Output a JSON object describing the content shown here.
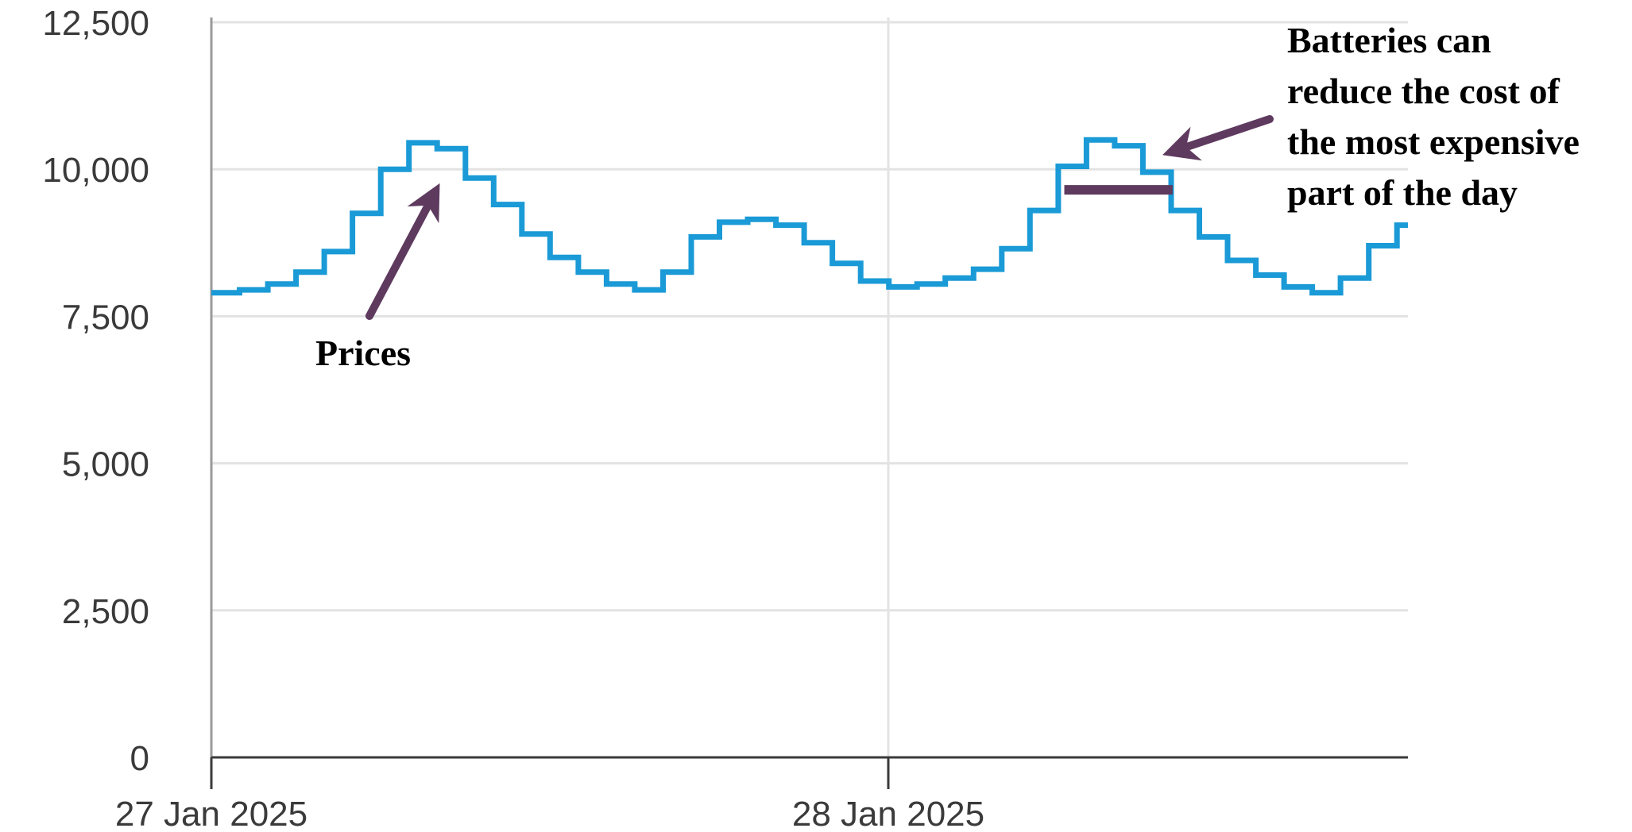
{
  "chart_data": {
    "type": "line",
    "step": true,
    "title": "",
    "xlabel": "",
    "ylabel": "",
    "ylim": [
      0,
      12500
    ],
    "y_ticks": [
      {
        "value": 0,
        "label": "0"
      },
      {
        "value": 2500,
        "label": "2,500"
      },
      {
        "value": 5000,
        "label": "5,000"
      },
      {
        "value": 7500,
        "label": "7,500"
      },
      {
        "value": 10000,
        "label": "10,000"
      },
      {
        "value": 12500,
        "label": "12,500"
      }
    ],
    "x_range_days": [
      0,
      1.765
    ],
    "x_ticks": [
      {
        "day": 0,
        "label": "27 Jan 2025"
      },
      {
        "day": 1,
        "label": "28 Jan 2025"
      }
    ],
    "x_grid_days": [
      1
    ],
    "grid": "horizontal and vertical",
    "colors": {
      "series": "#1a9ad6",
      "annotation": "#5e3a5f",
      "grid": "#e3e3e3",
      "axis": "#3a3a3a"
    },
    "series": [
      {
        "name": "Prices",
        "step_width_days": 0.0417,
        "values": [
          7900,
          7950,
          8050,
          8250,
          8600,
          9250,
          10000,
          10450,
          10350,
          9850,
          9400,
          8900,
          8500,
          8250,
          8050,
          7950,
          8250,
          8850,
          9100,
          9150,
          9050,
          8750,
          8400,
          8100,
          8000,
          8050,
          8150,
          8300,
          8650,
          9300,
          10050,
          10500,
          10400,
          9950,
          9300,
          8850,
          8450,
          8200,
          8000,
          7900,
          8150,
          8700,
          9050
        ]
      }
    ],
    "annotations": [
      {
        "id": "prices-label",
        "lines": [
          "Prices"
        ],
        "arrow_to": {
          "day": 0.33,
          "value": 9600
        }
      },
      {
        "id": "batteries-label",
        "lines": [
          "Batteries can",
          "reduce the cost of",
          "the most expensive",
          "part of  the day"
        ],
        "arrow_to": {
          "day": 1.42,
          "value": 10300
        }
      }
    ],
    "battery_bar": {
      "from_day": 1.26,
      "to_day": 1.42,
      "value": 9650
    }
  }
}
